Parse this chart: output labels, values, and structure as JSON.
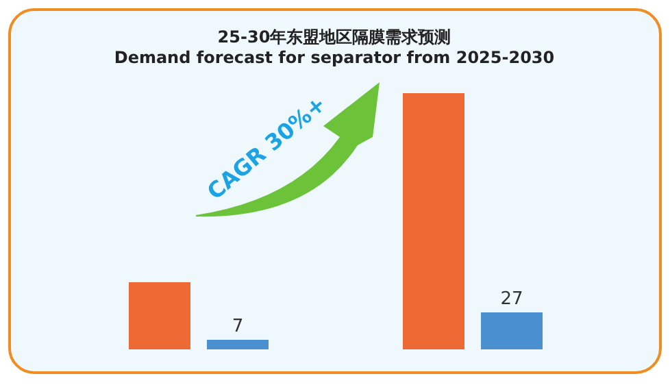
{
  "chart_data": {
    "type": "bar",
    "title": "25-30年东盟地区隔膜需求预测",
    "subtitle": "Demand forecast for separator from 2025-2030",
    "categories": [
      null,
      null
    ],
    "series": [
      {
        "color": "#ee6a35",
        "values": [
          49,
          187
        ]
      },
      {
        "color": "#4a8fd0",
        "values": [
          7,
          27
        ],
        "value_labels": [
          "7",
          "27"
        ]
      }
    ],
    "annotations": [
      "CAGR 30%+"
    ]
  }
}
